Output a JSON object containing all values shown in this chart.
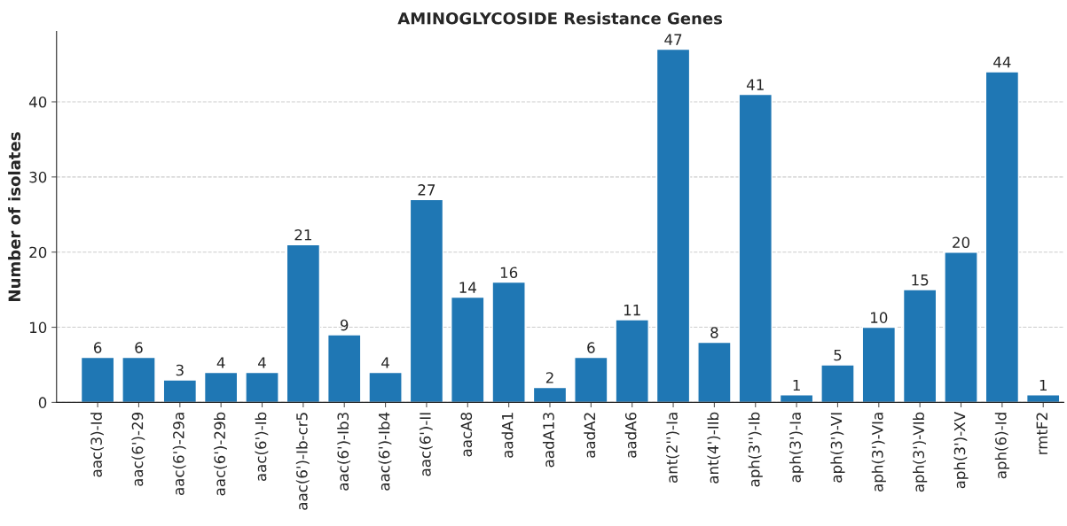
{
  "chart_data": {
    "type": "bar",
    "title": "AMINOGLYCOSIDE Resistance Genes",
    "ylabel": "Number of isolates",
    "categories": [
      "aac(3)-Id",
      "aac(6')-29",
      "aac(6')-29a",
      "aac(6')-29b",
      "aac(6')-Ib",
      "aac(6')-Ib-cr5",
      "aac(6')-Ib3",
      "aac(6')-Ib4",
      "aac(6')-II",
      "aacA8",
      "aadA1",
      "aadA13",
      "aadA2",
      "aadA6",
      "ant(2'')-Ia",
      "ant(4')-IIb",
      "aph(3'')-Ib",
      "aph(3')-Ia",
      "aph(3')-VI",
      "aph(3')-VIa",
      "aph(3')-VIb",
      "aph(3')-XV",
      "aph(6)-Id",
      "rmtF2"
    ],
    "values": [
      6,
      6,
      3,
      4,
      4,
      21,
      9,
      4,
      27,
      14,
      16,
      2,
      6,
      11,
      47,
      8,
      41,
      1,
      5,
      10,
      15,
      20,
      44,
      1
    ],
    "color": "#1f77b4",
    "ylim": [
      0,
      49.35
    ],
    "yticks": [
      0,
      10,
      20,
      30,
      40
    ],
    "grid": "y",
    "data_labels": true
  }
}
